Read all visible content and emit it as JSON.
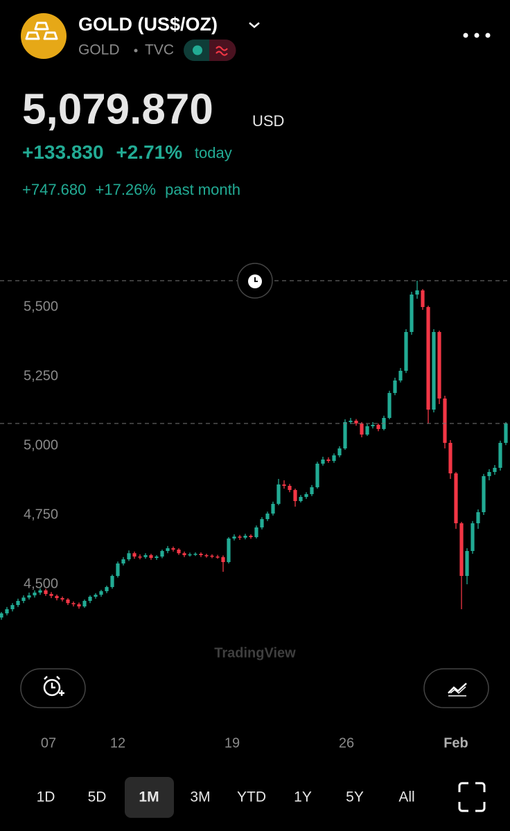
{
  "header": {
    "title": "GOLD (US$/OZ)",
    "symbol": "GOLD",
    "exchange": "TVC",
    "price": "5,079.870",
    "currency": "USD",
    "change": "+133.830",
    "change_pct": "+2.71%",
    "change_period": "today",
    "month_change": "+747.680",
    "month_change_pct": "+17.26%",
    "month_period": "past month"
  },
  "chart_data": {
    "type": "candlestick",
    "up_color": "#22ab94",
    "down_color": "#f23645",
    "ylim": [
      4300,
      5800
    ],
    "yticks": [
      {
        "value": 4500,
        "label": "4,500"
      },
      {
        "value": 4750,
        "label": "4,750"
      },
      {
        "value": 5000,
        "label": "5,000"
      },
      {
        "value": 5250,
        "label": "5,250"
      },
      {
        "value": 5500,
        "label": "5,500"
      }
    ],
    "xlim": [
      -0.25,
      91.75
    ],
    "xticks": [
      {
        "value": 8.5,
        "label": "07"
      },
      {
        "value": 21,
        "label": "12"
      },
      {
        "value": 41.625,
        "label": "19"
      },
      {
        "value": 62.25,
        "label": "26"
      },
      {
        "value": 82,
        "label": "Feb"
      }
    ],
    "open": [
      4380,
      4395,
      4410,
      4425,
      4440,
      4452,
      4460,
      4470,
      4478,
      4465,
      4458,
      4450,
      4445,
      4432,
      4428,
      4420,
      4440,
      4455,
      4462,
      4475,
      4490,
      4530,
      4575,
      4590,
      4612,
      4600,
      4598,
      4605,
      4595,
      4600,
      4620,
      4630,
      4625,
      4612,
      4605,
      4608,
      4610,
      4605,
      4603,
      4600,
      4598,
      4580,
      4665,
      4672,
      4668,
      4675,
      4670,
      4705,
      4735,
      4755,
      4790,
      4860,
      4855,
      4840,
      4800,
      4815,
      4825,
      4850,
      4935,
      4950,
      4945,
      4965,
      4990,
      5085,
      5090,
      5080,
      5040,
      5070,
      5075,
      5060,
      5100,
      5190,
      5235,
      5270,
      5410,
      5545,
      5560,
      5500,
      5130,
      5410,
      5170,
      5010,
      4900,
      4720,
      4530,
      4620,
      4720,
      4760,
      4890,
      4905,
      4920,
      5010
    ],
    "high": [
      4400,
      4418,
      4432,
      4448,
      4460,
      4470,
      4478,
      4485,
      4484,
      4472,
      4463,
      4456,
      4450,
      4438,
      4434,
      4445,
      4460,
      4468,
      4480,
      4495,
      4535,
      4582,
      4598,
      4622,
      4618,
      4608,
      4612,
      4610,
      4605,
      4625,
      4638,
      4636,
      4630,
      4618,
      4614,
      4615,
      4615,
      4610,
      4608,
      4606,
      4604,
      4670,
      4680,
      4678,
      4682,
      4680,
      4712,
      4742,
      4762,
      4798,
      4880,
      4875,
      4862,
      4845,
      4822,
      4832,
      4858,
      4942,
      4960,
      4958,
      4972,
      4998,
      5095,
      5100,
      5096,
      5085,
      5078,
      5085,
      5080,
      5108,
      5198,
      5245,
      5280,
      5420,
      5555,
      5595,
      5565,
      5505,
      5420,
      5415,
      5180,
      5020,
      4905,
      4725,
      4630,
      4728,
      4770,
      4898,
      4915,
      4930,
      5018,
      5085
    ],
    "low": [
      4372,
      4388,
      4402,
      4418,
      4432,
      4445,
      4452,
      4462,
      4458,
      4450,
      4442,
      4438,
      4425,
      4420,
      4412,
      4415,
      4432,
      4448,
      4455,
      4468,
      4484,
      4524,
      4568,
      4584,
      4592,
      4590,
      4592,
      4588,
      4588,
      4594,
      4612,
      4618,
      4606,
      4598,
      4600,
      4602,
      4598,
      4596,
      4594,
      4592,
      4545,
      4575,
      4658,
      4660,
      4662,
      4664,
      4665,
      4698,
      4728,
      4748,
      4785,
      4845,
      4832,
      4780,
      4795,
      4808,
      4818,
      4845,
      4928,
      4938,
      4938,
      4958,
      4985,
      5078,
      5072,
      5030,
      5035,
      5062,
      5052,
      5055,
      5095,
      5182,
      5228,
      5262,
      5400,
      5530,
      5490,
      5080,
      5120,
      5150,
      4990,
      4880,
      4700,
      4410,
      4500,
      4610,
      4700,
      4750,
      4875,
      4895,
      4910,
      5002
    ],
    "close": [
      4395,
      4410,
      4425,
      4440,
      4452,
      4460,
      4470,
      4478,
      4465,
      4458,
      4450,
      4445,
      4432,
      4428,
      4420,
      4440,
      4455,
      4462,
      4475,
      4490,
      4530,
      4575,
      4590,
      4612,
      4600,
      4598,
      4605,
      4595,
      4600,
      4620,
      4630,
      4625,
      4612,
      4605,
      4608,
      4610,
      4605,
      4603,
      4600,
      4598,
      4580,
      4665,
      4672,
      4668,
      4675,
      4670,
      4705,
      4735,
      4755,
      4790,
      4860,
      4855,
      4840,
      4800,
      4815,
      4825,
      4850,
      4935,
      4950,
      4945,
      4965,
      4990,
      5085,
      5090,
      5080,
      5040,
      5070,
      5075,
      5060,
      5100,
      5190,
      5235,
      5270,
      5410,
      5545,
      5560,
      5500,
      5130,
      5410,
      5170,
      5010,
      4900,
      4720,
      4530,
      4620,
      4720,
      4760,
      4890,
      4905,
      4920,
      5010,
      5079.87
    ],
    "watermark": "TradingView"
  },
  "timeframes": {
    "items": [
      "1D",
      "5D",
      "1M",
      "3M",
      "YTD",
      "1Y",
      "5Y",
      "All"
    ],
    "selected": 2
  }
}
